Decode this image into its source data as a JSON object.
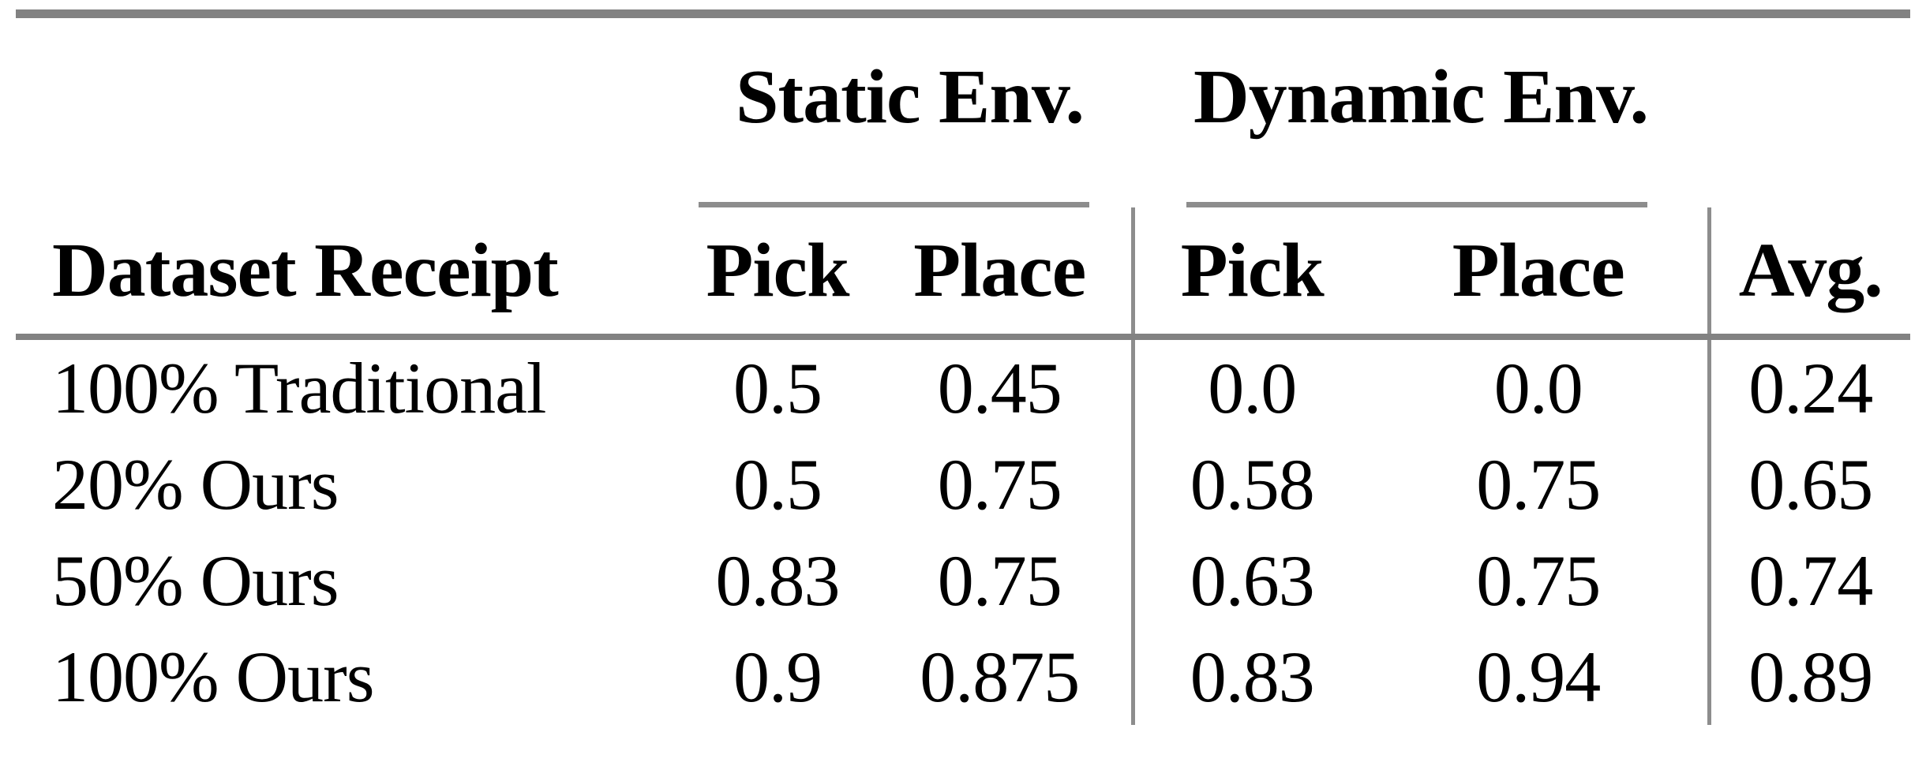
{
  "table": {
    "row_header": "Dataset Receipt",
    "column_groups": [
      {
        "label": "Static Env.",
        "columns": [
          "Pick",
          "Place"
        ]
      },
      {
        "label": "Dynamic Env.",
        "columns": [
          "Pick",
          "Place"
        ]
      }
    ],
    "avg_header": "Avg.",
    "rows": [
      {
        "label": "100% Traditional",
        "values": [
          "0.5",
          "0.45",
          "0.0",
          "0.0",
          "0.24"
        ]
      },
      {
        "label": "20% Ours",
        "values": [
          "0.5",
          "0.75",
          "0.58",
          "0.75",
          "0.65"
        ]
      },
      {
        "label": "50% Ours",
        "values": [
          "0.83",
          "0.75",
          "0.63",
          "0.75",
          "0.74"
        ]
      },
      {
        "label": "100% Ours",
        "values": [
          "0.9",
          "0.875",
          "0.83",
          "0.94",
          "0.89"
        ]
      }
    ]
  },
  "colors": {
    "rule_thick": "#828282",
    "rule_thin": "#8d8d8d",
    "text": "#000000",
    "background": "#ffffff"
  }
}
